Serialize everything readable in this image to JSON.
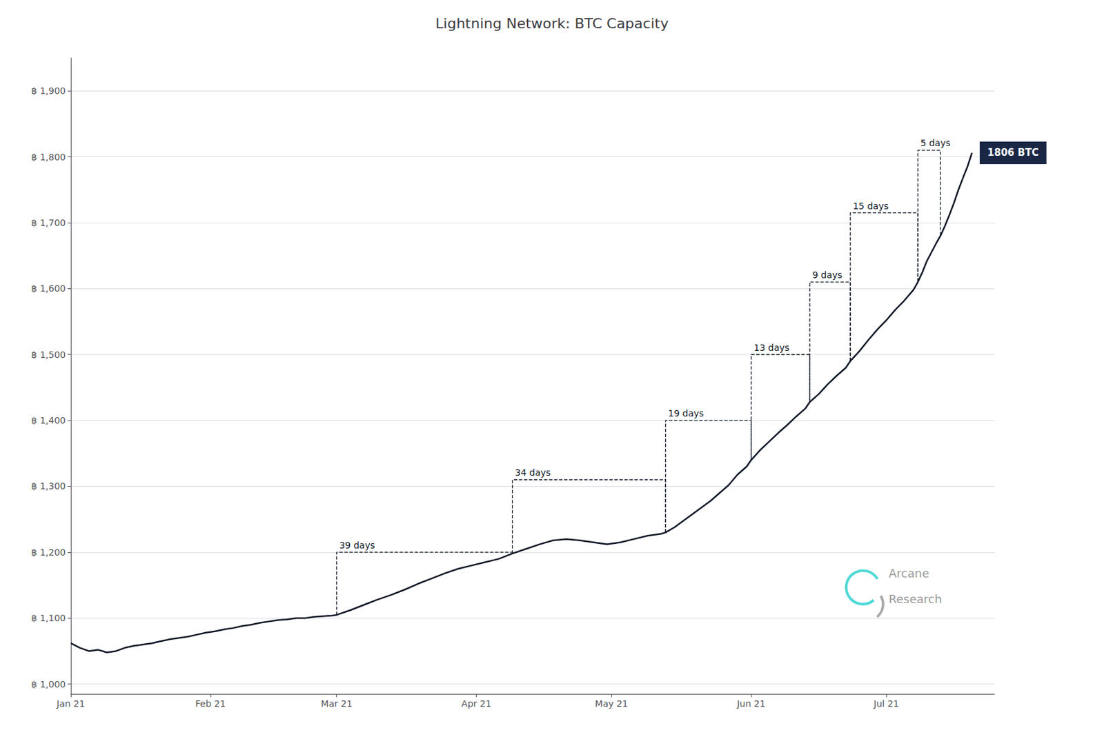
{
  "chart_data": {
    "type": "line",
    "title": "Lightning Network: BTC Capacity",
    "x": [
      0,
      2,
      4,
      6,
      8,
      10,
      12,
      14,
      16,
      18,
      20,
      22,
      24,
      26,
      28,
      30,
      32,
      34,
      36,
      38,
      40,
      42,
      44,
      46,
      48,
      50,
      52,
      54,
      56,
      58,
      59,
      62,
      65,
      68,
      71,
      74,
      77,
      80,
      83,
      86,
      89,
      92,
      95,
      98,
      101,
      104,
      107,
      110,
      113,
      116,
      119,
      122,
      125,
      128,
      131,
      132,
      134,
      136,
      138,
      140,
      142,
      144,
      146,
      148,
      150,
      151,
      153,
      155,
      157,
      159,
      161,
      163,
      164,
      166,
      168,
      170,
      172,
      173,
      175,
      177,
      179,
      181,
      183,
      185,
      187,
      188,
      189,
      190,
      191,
      192,
      193,
      194,
      195,
      196,
      197,
      198,
      199,
      200
    ],
    "values": [
      1062,
      1055,
      1050,
      1052,
      1048,
      1050,
      1055,
      1058,
      1060,
      1062,
      1065,
      1068,
      1070,
      1072,
      1075,
      1078,
      1080,
      1083,
      1085,
      1088,
      1090,
      1093,
      1095,
      1097,
      1098,
      1100,
      1100,
      1102,
      1103,
      1104,
      1105,
      1112,
      1120,
      1128,
      1135,
      1143,
      1152,
      1160,
      1168,
      1175,
      1180,
      1185,
      1190,
      1198,
      1205,
      1212,
      1218,
      1220,
      1218,
      1215,
      1212,
      1215,
      1220,
      1225,
      1228,
      1230,
      1238,
      1248,
      1258,
      1268,
      1278,
      1290,
      1302,
      1318,
      1330,
      1340,
      1355,
      1368,
      1381,
      1393,
      1406,
      1418,
      1428,
      1440,
      1455,
      1468,
      1480,
      1490,
      1505,
      1522,
      1538,
      1552,
      1568,
      1582,
      1598,
      1610,
      1625,
      1642,
      1655,
      1668,
      1680,
      1695,
      1712,
      1730,
      1750,
      1768,
      1785,
      1806
    ],
    "color": "#111827",
    "xlim": [
      0,
      205
    ],
    "xticks": [
      {
        "value": 0,
        "label": "Jan 21"
      },
      {
        "value": 31,
        "label": "Feb 21"
      },
      {
        "value": 59,
        "label": "Mar 21"
      },
      {
        "value": 90,
        "label": "Apr 21"
      },
      {
        "value": 120,
        "label": "May 21"
      },
      {
        "value": 151,
        "label": "Jun 21"
      },
      {
        "value": 181,
        "label": "Jul 21"
      }
    ],
    "ylim": [
      985,
      1950
    ],
    "yticks": [
      {
        "value": 1000,
        "label": "฿ 1,000"
      },
      {
        "value": 1100,
        "label": "฿ 1,100"
      },
      {
        "value": 1200,
        "label": "฿ 1,200"
      },
      {
        "value": 1300,
        "label": "฿ 1,300"
      },
      {
        "value": 1400,
        "label": "฿ 1,400"
      },
      {
        "value": 1500,
        "label": "฿ 1,500"
      },
      {
        "value": 1600,
        "label": "฿ 1,600"
      },
      {
        "value": 1700,
        "label": "฿ 1,700"
      },
      {
        "value": 1800,
        "label": "฿ 1,800"
      },
      {
        "value": 1900,
        "label": "฿ 1,900"
      }
    ],
    "grid": "y",
    "steps": {
      "color": "#111827",
      "line_style": "dashed",
      "items": [
        {
          "label": "39 days",
          "x_start": 59,
          "x_end": 98,
          "y_top": 1200
        },
        {
          "label": "34 days",
          "x_start": 98,
          "x_end": 132,
          "y_top": 1310
        },
        {
          "label": "19 days",
          "x_start": 132,
          "x_end": 151,
          "y_top": 1400
        },
        {
          "label": "13 days",
          "x_start": 151,
          "x_end": 164,
          "y_top": 1500
        },
        {
          "label": "9 days",
          "x_start": 164,
          "x_end": 173,
          "y_top": 1610
        },
        {
          "label": "15 days",
          "x_start": 173,
          "x_end": 188,
          "y_top": 1715
        },
        {
          "label": "5 days",
          "x_start": 188,
          "x_end": 193,
          "y_top": 1810
        }
      ]
    },
    "end_label": {
      "text": "1806 BTC",
      "color": "#ffffff",
      "background": "#1a2744"
    },
    "logo": {
      "texts": [
        "Arcane",
        "Research"
      ],
      "color": "#999999",
      "colors": [
        "#4dd9d5",
        "#aaaaaa"
      ]
    }
  }
}
